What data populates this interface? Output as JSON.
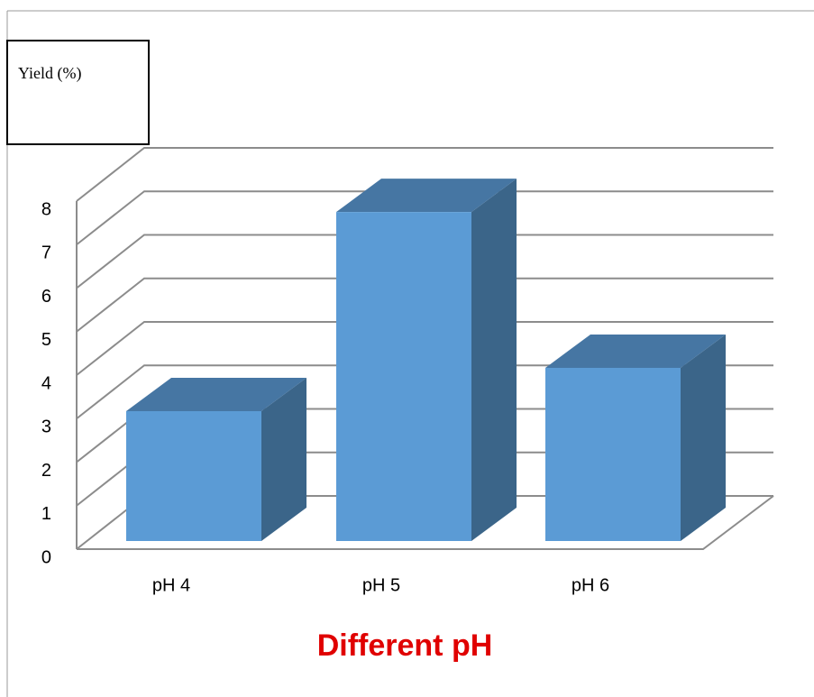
{
  "chart_data": {
    "type": "bar3d",
    "y_label": "Yield (%)",
    "x_label": "Different pH",
    "categories": [
      "pH 4",
      "pH 5",
      "pH 6"
    ],
    "values": [
      3,
      7.6,
      4
    ],
    "color": "#5b9bd5",
    "ylim": [
      0,
      8
    ],
    "yticks": [
      0,
      1,
      2,
      3,
      4,
      5,
      6,
      7,
      8
    ],
    "grid": true
  }
}
